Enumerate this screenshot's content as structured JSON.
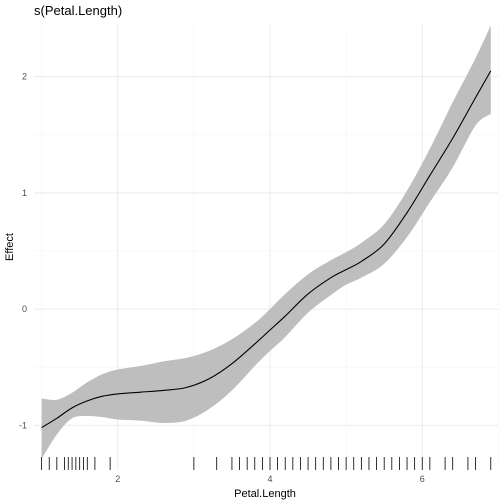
{
  "chart_data": {
    "type": "line",
    "title": "s(Petal.Length)",
    "xlabel": "Petal.Length",
    "ylabel": "Effect",
    "xlim": [
      0.9,
      6.995
    ],
    "ylim": [
      -1.385,
      2.445
    ],
    "x_ticks": [
      2,
      4,
      6
    ],
    "y_ticks": [
      -1,
      0,
      1,
      2
    ],
    "x_minor_ticks": [
      1,
      3,
      5,
      7
    ],
    "y_minor_ticks": [
      -0.5,
      0.5,
      1.5
    ],
    "grid": true,
    "series": [
      {
        "name": "fit",
        "x": [
          1.0,
          1.2,
          1.4,
          1.6,
          1.8,
          2.0,
          2.3,
          2.6,
          2.9,
          3.2,
          3.5,
          3.8,
          4.0,
          4.2,
          4.5,
          4.8,
          5.0,
          5.2,
          5.5,
          5.8,
          6.1,
          6.4,
          6.7,
          6.9
        ],
        "y": [
          -1.02,
          -0.94,
          -0.85,
          -0.79,
          -0.75,
          -0.73,
          -0.715,
          -0.7,
          -0.675,
          -0.6,
          -0.47,
          -0.3,
          -0.18,
          -0.06,
          0.13,
          0.27,
          0.34,
          0.41,
          0.56,
          0.83,
          1.15,
          1.47,
          1.82,
          2.05
        ]
      },
      {
        "name": "ci_upper",
        "x": [
          1.0,
          1.2,
          1.4,
          1.6,
          1.8,
          2.0,
          2.3,
          2.6,
          2.9,
          3.2,
          3.5,
          3.8,
          4.0,
          4.2,
          4.5,
          4.8,
          5.0,
          5.2,
          5.5,
          5.8,
          6.1,
          6.4,
          6.7,
          6.9
        ],
        "y": [
          -0.77,
          -0.78,
          -0.72,
          -0.63,
          -0.56,
          -0.52,
          -0.49,
          -0.45,
          -0.42,
          -0.36,
          -0.26,
          -0.12,
          0.0,
          0.13,
          0.3,
          0.42,
          0.49,
          0.57,
          0.73,
          1.02,
          1.38,
          1.78,
          2.16,
          2.44
        ]
      },
      {
        "name": "ci_lower",
        "x": [
          1.0,
          1.2,
          1.4,
          1.6,
          1.8,
          2.0,
          2.3,
          2.6,
          2.9,
          3.2,
          3.5,
          3.8,
          4.0,
          4.2,
          4.5,
          4.8,
          5.0,
          5.2,
          5.5,
          5.8,
          6.1,
          6.4,
          6.7,
          6.9
        ],
        "y": [
          -1.29,
          -1.08,
          -0.94,
          -0.92,
          -0.93,
          -0.95,
          -0.96,
          -0.98,
          -0.96,
          -0.86,
          -0.7,
          -0.49,
          -0.36,
          -0.24,
          -0.03,
          0.12,
          0.21,
          0.27,
          0.39,
          0.62,
          0.92,
          1.22,
          1.58,
          1.68
        ]
      }
    ],
    "rug": [
      1.0,
      1.1,
      1.2,
      1.3,
      1.35,
      1.4,
      1.45,
      1.5,
      1.55,
      1.6,
      1.7,
      1.9,
      3.0,
      3.3,
      3.5,
      3.6,
      3.7,
      3.8,
      3.9,
      4.0,
      4.1,
      4.2,
      4.3,
      4.4,
      4.5,
      4.6,
      4.7,
      4.8,
      4.9,
      5.0,
      5.1,
      5.2,
      5.3,
      5.4,
      5.5,
      5.6,
      5.7,
      5.8,
      5.9,
      6.0,
      6.1,
      6.3,
      6.4,
      6.6,
      6.7,
      6.9
    ]
  }
}
